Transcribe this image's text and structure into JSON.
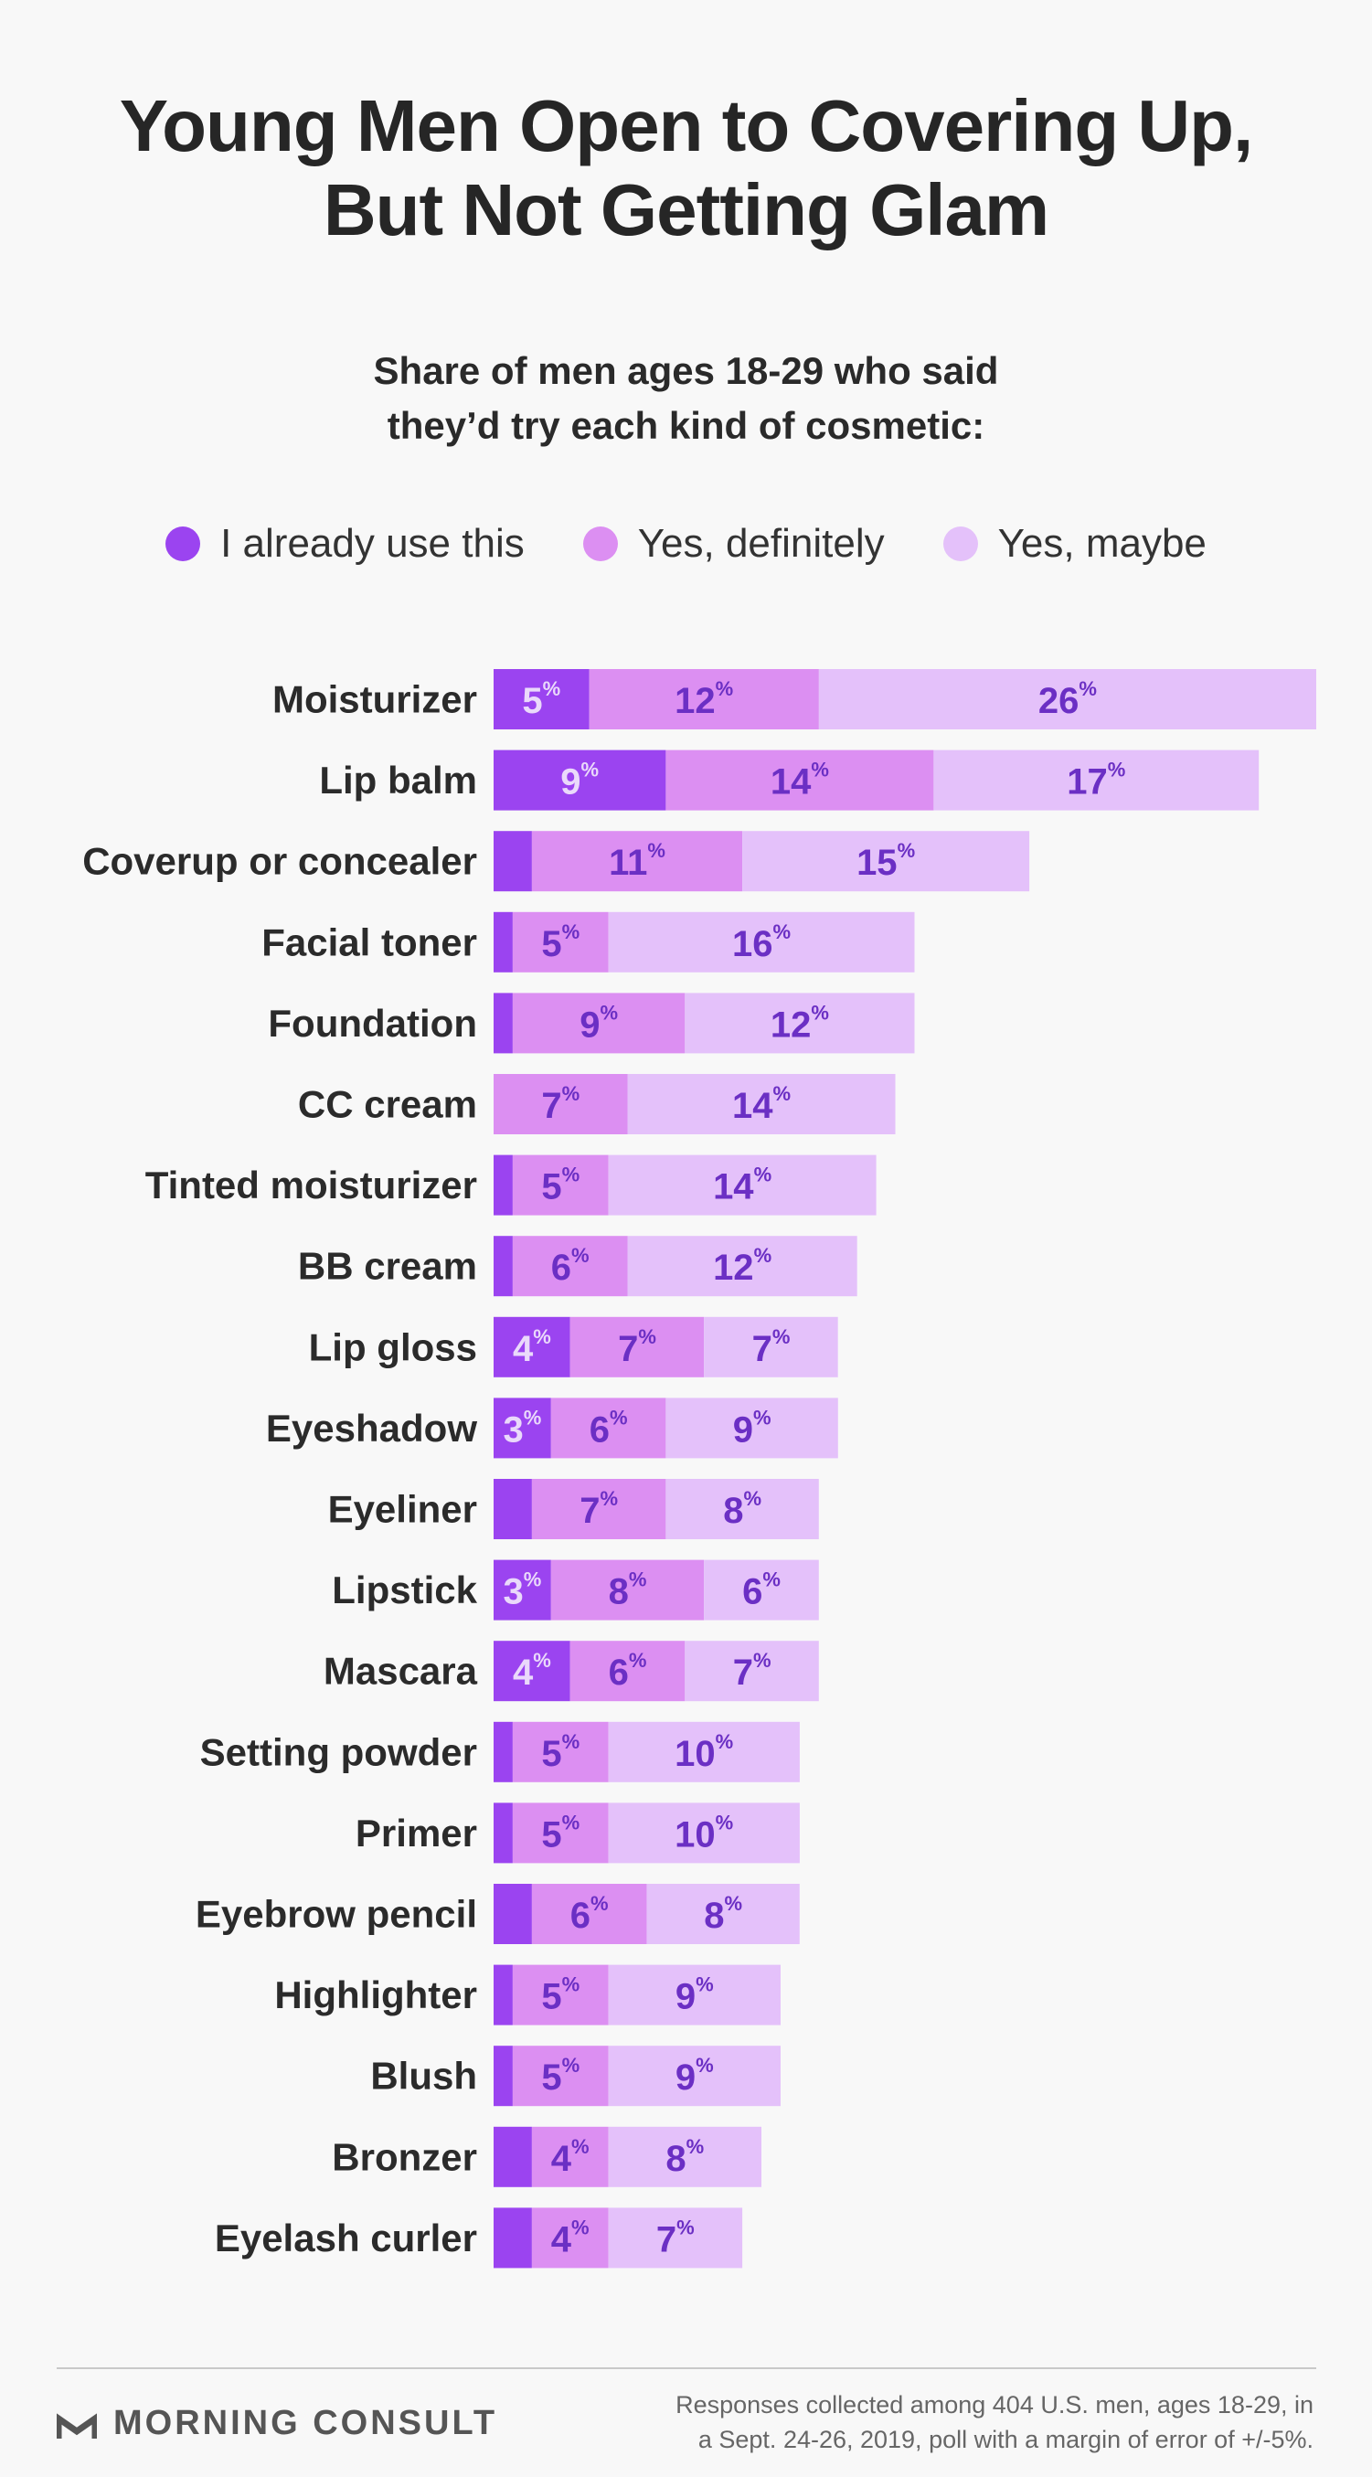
{
  "title": {
    "line1": "Young Men Open to Covering Up,",
    "line2": "But Not Getting Glam"
  },
  "subtitle": {
    "line1": "Share of men ages 18-29 who said",
    "line2": "they’d try each kind of cosmetic:"
  },
  "colors": {
    "already": "#9b44f0",
    "definitely": "#dc8ff2",
    "maybe": "#e4c1fa",
    "label_dark": "#6b2fc4",
    "label_light": "#ead9fb"
  },
  "chart_data": {
    "type": "bar",
    "orientation": "horizontal",
    "stacked": true,
    "unit": "%",
    "categories": [
      "Moisturizer",
      "Lip balm",
      "Coverup or concealer",
      "Facial toner",
      "Foundation",
      "CC cream",
      "Tinted moisturizer",
      "BB cream",
      "Lip gloss",
      "Eyeshadow",
      "Eyeliner",
      "Lipstick",
      "Mascara",
      "Setting powder",
      "Primer",
      "Eyebrow pencil",
      "Highlighter",
      "Blush",
      "Bronzer",
      "Eyelash curler"
    ],
    "series": [
      {
        "name": "I already use this",
        "values": [
          5,
          9,
          2,
          1,
          1,
          0,
          1,
          1,
          4,
          3,
          2,
          3,
          4,
          1,
          1,
          2,
          1,
          1,
          2,
          2
        ],
        "labels": [
          "5",
          "9",
          "",
          "",
          "",
          "",
          "",
          "",
          "4",
          "3",
          "",
          "3",
          "4",
          "",
          "",
          "",
          "",
          "",
          "",
          ""
        ]
      },
      {
        "name": "Yes, definitely",
        "values": [
          12,
          14,
          11,
          5,
          9,
          7,
          5,
          6,
          7,
          6,
          7,
          8,
          6,
          5,
          5,
          6,
          5,
          5,
          4,
          4
        ],
        "labels": [
          "12",
          "14",
          "11",
          "5",
          "9",
          "7",
          "5",
          "6",
          "7",
          "6",
          "7",
          "8",
          "6",
          "5",
          "5",
          "6",
          "5",
          "5",
          "4",
          "4"
        ]
      },
      {
        "name": "Yes, maybe",
        "values": [
          26,
          17,
          15,
          16,
          12,
          14,
          14,
          12,
          7,
          9,
          8,
          6,
          7,
          10,
          10,
          8,
          9,
          9,
          8,
          7
        ],
        "labels": [
          "26",
          "17",
          "15",
          "16",
          "12",
          "14",
          "14",
          "12",
          "7",
          "9",
          "8",
          "6",
          "7",
          "10",
          "10",
          "8",
          "9",
          "9",
          "8",
          "7"
        ]
      }
    ],
    "xlim": [
      0,
      43
    ],
    "grid": false,
    "legend": "top"
  },
  "footer": {
    "brand": "MORNING CONSULT",
    "note_line1": "Responses collected among 404 U.S. men, ages 18-29, in",
    "note_line2": "a Sept. 24-26, 2019, poll with a margin of error of +/-5%."
  }
}
